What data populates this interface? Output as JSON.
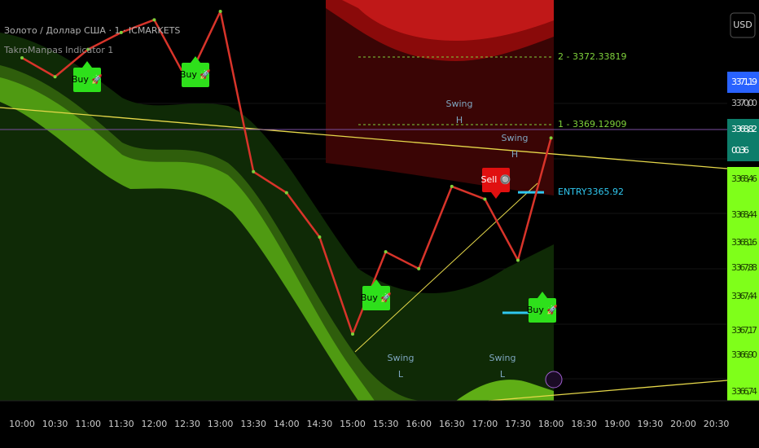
{
  "chart_data": {
    "type": "line",
    "title": "Золото / Доллар США · 1 · ICMARKETS",
    "subtitle": "TakroManpas Indicator 1",
    "currency": "USD",
    "categories": [
      "10:00",
      "10:30",
      "11:00",
      "11:30",
      "12:00",
      "12:30",
      "13:00",
      "13:30",
      "14:00",
      "14:30",
      "15:00",
      "15:30",
      "16:00",
      "16:30",
      "17:00",
      "17:30",
      "18:00",
      "18:30",
      "19:00",
      "19:30",
      "20:00",
      "20:30"
    ],
    "values": [
      3372.3,
      3371.4,
      3372.7,
      3373.5,
      3374.1,
      3371.2,
      3374.5,
      3366.9,
      3365.9,
      3363.8,
      3359.2,
      3363.1,
      3362.3,
      3366.2,
      3365.6,
      3362.7,
      3368.5,
      null,
      null,
      null,
      null,
      null
    ],
    "color": "#d8342a",
    "ylim": [
      3356.04,
      3375.04
    ],
    "levels": [
      {
        "value": 3372.33819,
        "label": "2 - 3372.33819"
      },
      {
        "value": 3369.12909,
        "label": "1 - 3369.12909"
      },
      {
        "value": 3365.92,
        "label": "ENTRY3365.92"
      }
    ],
    "annotations": [
      {
        "lines": [
          "Buy 🚀"
        ]
      },
      {
        "lines": [
          "Buy 🚀"
        ]
      },
      {
        "lines": [
          "Buy 🚀"
        ]
      },
      {
        "lines": [
          "Buy 🚀"
        ]
      },
      {
        "lines": [
          "Sell 🔘"
        ]
      },
      {
        "lines": [
          "Swing",
          "H"
        ]
      },
      {
        "lines": [
          "Swing",
          "H"
        ]
      },
      {
        "lines": [
          "Swing",
          "L"
        ]
      },
      {
        "lines": [
          "Swing",
          "L"
        ]
      }
    ],
    "price_tags": [
      "3 371,19",
      "3 370,00",
      "3 368,82",
      "00:36",
      "3 368,46",
      "3 368,44",
      "3 368,16",
      "3 367,88",
      "3 367,44",
      "3 367,17",
      "3 366,90",
      "3 366,74"
    ]
  }
}
